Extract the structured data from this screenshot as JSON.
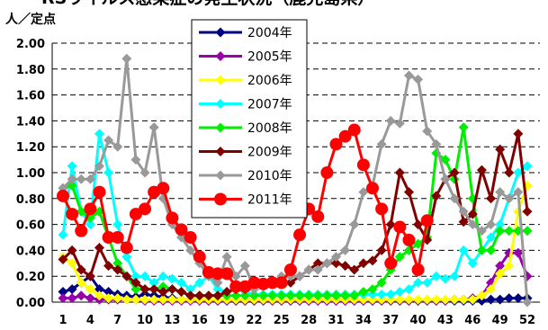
{
  "chart_data": {
    "type": "line",
    "title": "RSウイルス感染症の発生状況（鹿児島県）",
    "ylabel": "人／定点",
    "ylim": [
      0,
      2.0
    ],
    "y_ticks": [
      "0.00",
      "0.20",
      "0.40",
      "0.60",
      "0.80",
      "1.00",
      "1.20",
      "1.40",
      "1.60",
      "1.80",
      "2.00"
    ],
    "x_ticks": [
      "1",
      "4",
      "7",
      "10",
      "13",
      "16",
      "19",
      "22",
      "25",
      "28",
      "31",
      "34",
      "37",
      "40",
      "43",
      "46",
      "49",
      "52"
    ],
    "x_tick_weeks": [
      1,
      4,
      7,
      10,
      13,
      16,
      19,
      22,
      25,
      28,
      31,
      34,
      37,
      40,
      43,
      46,
      49,
      52
    ],
    "x_range": [
      1,
      52
    ],
    "grid": true,
    "legend_position": "top-center",
    "series": [
      {
        "name": "2004年",
        "color": "#000080",
        "marker": "diamond",
        "values": [
          0.08,
          0.1,
          0.15,
          0.2,
          0.1,
          0.08,
          0.06,
          0.05,
          0.04,
          0.06,
          0.05,
          0.04,
          0.03,
          0.02,
          0.02,
          0.02,
          0.01,
          0.01,
          0.01,
          0.01,
          0.01,
          0.01,
          0.01,
          0.01,
          0.01,
          0.01,
          0.01,
          0.01,
          0.01,
          0.01,
          0.01,
          0.01,
          0.01,
          0.01,
          0.01,
          0.01,
          0.01,
          0.01,
          0.01,
          0.01,
          0.01,
          0.01,
          0.01,
          0.01,
          0.01,
          0.01,
          0.01,
          0.02,
          0.02,
          0.03,
          0.03,
          0.03
        ]
      },
      {
        "name": "2005年",
        "color": "#9900aa",
        "marker": "diamond",
        "values": [
          0.03,
          0.03,
          0.05,
          0.03,
          0.02,
          0.02,
          0.02,
          0.02,
          0.02,
          0.01,
          0.01,
          0.01,
          0.01,
          0.01,
          0.01,
          0.01,
          0.01,
          0.01,
          0.01,
          0.01,
          0.01,
          0.01,
          0.01,
          0.01,
          0.01,
          0.01,
          0.01,
          0.01,
          0.01,
          0.01,
          0.01,
          0.01,
          0.01,
          0.01,
          0.01,
          0.01,
          0.01,
          0.01,
          0.01,
          0.01,
          0.01,
          0.01,
          0.01,
          0.02,
          0.02,
          0.03,
          0.05,
          0.15,
          0.28,
          0.38,
          0.38,
          0.2
        ]
      },
      {
        "name": "2006年",
        "color": "#ffff00",
        "marker": "diamond",
        "values": [
          0.35,
          0.3,
          0.15,
          0.1,
          0.05,
          0.03,
          0.03,
          0.02,
          0.02,
          0.02,
          0.02,
          0.02,
          0.02,
          0.02,
          0.02,
          0.02,
          0.02,
          0.02,
          0.02,
          0.02,
          0.02,
          0.02,
          0.02,
          0.02,
          0.02,
          0.02,
          0.02,
          0.02,
          0.02,
          0.02,
          0.02,
          0.02,
          0.02,
          0.02,
          0.02,
          0.02,
          0.02,
          0.02,
          0.02,
          0.02,
          0.02,
          0.02,
          0.02,
          0.02,
          0.02,
          0.02,
          0.05,
          0.1,
          0.22,
          0.28,
          0.7,
          0.9
        ]
      },
      {
        "name": "2007年",
        "color": "#00ffff",
        "marker": "diamond",
        "values": [
          0.52,
          1.05,
          0.7,
          0.6,
          1.3,
          1.0,
          0.6,
          0.35,
          0.2,
          0.2,
          0.15,
          0.2,
          0.18,
          0.15,
          0.1,
          0.15,
          0.2,
          0.1,
          0.08,
          0.1,
          0.08,
          0.06,
          0.06,
          0.06,
          0.06,
          0.06,
          0.06,
          0.06,
          0.06,
          0.06,
          0.06,
          0.06,
          0.06,
          0.06,
          0.06,
          0.06,
          0.06,
          0.08,
          0.1,
          0.15,
          0.15,
          0.2,
          0.18,
          0.2,
          0.4,
          0.3,
          0.4,
          0.5,
          0.6,
          0.8,
          1.0,
          1.05
        ]
      },
      {
        "name": "2008年",
        "color": "#00ee00",
        "marker": "diamond",
        "values": [
          0.88,
          0.9,
          0.7,
          0.65,
          0.7,
          0.5,
          0.3,
          0.2,
          0.1,
          0.1,
          0.1,
          0.12,
          0.1,
          0.08,
          0.05,
          0.05,
          0.05,
          0.05,
          0.05,
          0.05,
          0.05,
          0.05,
          0.05,
          0.05,
          0.05,
          0.05,
          0.05,
          0.05,
          0.05,
          0.05,
          0.05,
          0.05,
          0.05,
          0.08,
          0.1,
          0.15,
          0.25,
          0.35,
          0.4,
          0.45,
          0.5,
          1.15,
          1.1,
          0.95,
          1.35,
          0.8,
          0.4,
          0.4,
          0.55,
          0.55,
          0.55,
          0.55
        ]
      },
      {
        "name": "2009年",
        "color": "#800000",
        "marker": "diamond",
        "values": [
          0.33,
          0.4,
          0.25,
          0.2,
          0.42,
          0.28,
          0.25,
          0.2,
          0.15,
          0.1,
          0.1,
          0.08,
          0.1,
          0.08,
          0.05,
          0.05,
          0.05,
          0.05,
          0.08,
          0.1,
          0.1,
          0.12,
          0.15,
          0.15,
          0.15,
          0.15,
          0.2,
          0.25,
          0.3,
          0.3,
          0.3,
          0.28,
          0.25,
          0.3,
          0.32,
          0.4,
          0.6,
          1.0,
          0.85,
          0.6,
          0.48,
          0.82,
          0.95,
          1.0,
          0.62,
          0.68,
          1.02,
          0.8,
          1.18,
          1.0,
          1.3,
          0.7
        ]
      },
      {
        "name": "2010年",
        "color": "#999999",
        "marker": "diamond",
        "values": [
          0.88,
          0.95,
          0.95,
          0.95,
          1.05,
          1.25,
          1.2,
          1.88,
          1.1,
          1.0,
          1.35,
          0.8,
          0.6,
          0.5,
          0.4,
          0.3,
          0.2,
          0.15,
          0.35,
          0.2,
          0.28,
          0.1,
          0.15,
          0.15,
          0.2,
          0.2,
          0.2,
          0.25,
          0.25,
          0.3,
          0.35,
          0.4,
          0.6,
          0.85,
          0.9,
          1.22,
          1.4,
          1.38,
          1.75,
          1.72,
          1.32,
          1.22,
          0.95,
          0.8,
          0.7,
          0.6,
          0.55,
          0.6,
          0.85,
          0.8,
          0.85,
          0.0
        ]
      },
      {
        "name": "2011年",
        "color": "#ff0000",
        "marker": "circle",
        "values": [
          0.82,
          0.68,
          0.55,
          0.72,
          0.85,
          0.5,
          0.5,
          0.42,
          0.68,
          0.72,
          0.85,
          0.88,
          0.65,
          0.56,
          0.5,
          0.35,
          0.23,
          0.22,
          0.22,
          0.12,
          0.12,
          0.15,
          0.14,
          0.15,
          0.15,
          0.25,
          0.52,
          0.72,
          0.66,
          1.0,
          1.22,
          1.28,
          1.33,
          1.06,
          0.88,
          0.72,
          0.3,
          0.58,
          0.48,
          0.25,
          0.63
        ]
      }
    ]
  }
}
